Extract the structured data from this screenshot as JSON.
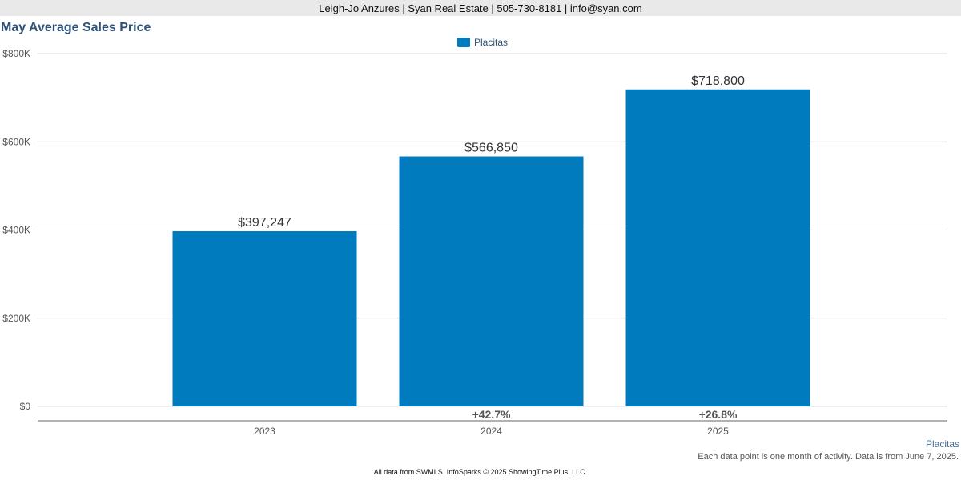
{
  "header": {
    "contact": "Leigh-Jo Anzures | Syan Real Estate | 505-730-8181 | info@syan.com"
  },
  "chart_data": {
    "type": "bar",
    "title": "May Average Sales Price",
    "categories": [
      "2023",
      "2024",
      "2025"
    ],
    "series": [
      {
        "name": "Placitas",
        "values": [
          397247,
          566850,
          718800
        ],
        "labels": [
          "$397,247",
          "$566,850",
          "$718,800"
        ],
        "color": "#007bbd"
      }
    ],
    "change_labels": [
      "",
      "+42.7%",
      "+26.8%"
    ],
    "ylim": [
      0,
      800000
    ],
    "yticks": [
      {
        "value": 0,
        "label": "$0"
      },
      {
        "value": 200000,
        "label": "$200K"
      },
      {
        "value": 400000,
        "label": "$400K"
      },
      {
        "value": 600000,
        "label": "$600K"
      },
      {
        "value": 800000,
        "label": "$800K"
      }
    ],
    "grid": true,
    "legend_position": "top-center"
  },
  "footer": {
    "series_label": "Placitas",
    "note": "Each data point is one month of activity. Data is from June 7, 2025.",
    "source": "All data from SWMLS. InfoSparks © 2025 ShowingTime Plus, LLC."
  }
}
